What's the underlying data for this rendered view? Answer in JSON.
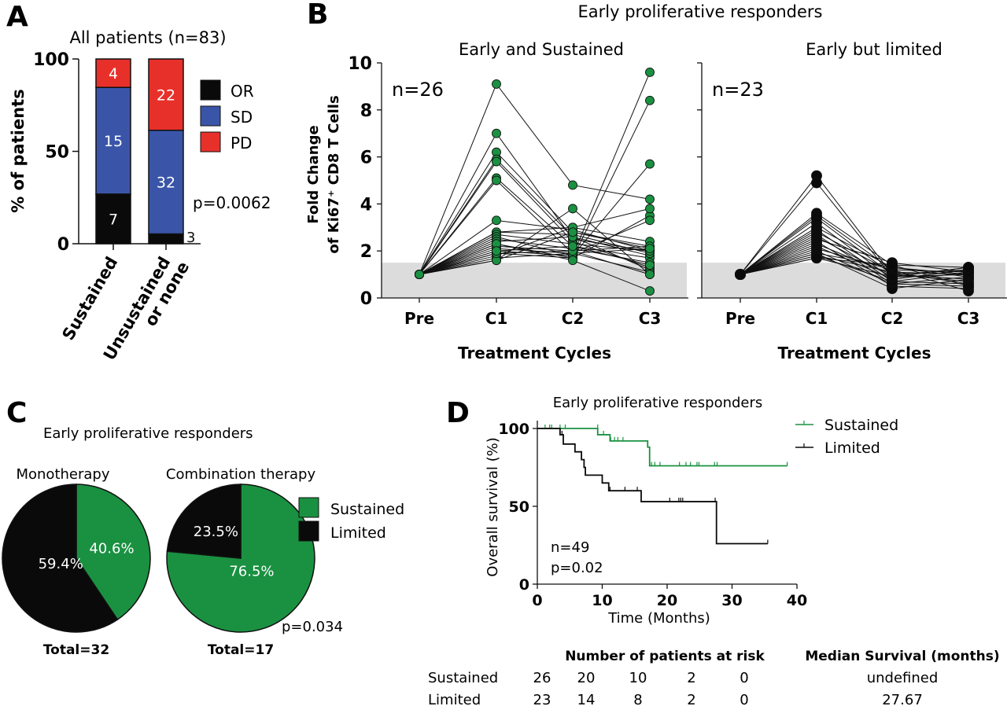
{
  "panels": {
    "A": "A",
    "B": "B",
    "C": "C",
    "D": "D"
  },
  "chart_data": [
    {
      "id": "A",
      "type": "bar",
      "stacked": true,
      "title": "All patients (n=83)",
      "ylabel": "% of patients",
      "ylim": [
        0,
        100
      ],
      "yticks": [
        "0",
        "50",
        "100"
      ],
      "categories": [
        "Sustained",
        "Unsustained or none"
      ],
      "category_lines": [
        [
          "Sustained"
        ],
        [
          "Unsustained",
          "or none"
        ]
      ],
      "series": [
        {
          "name": "OR",
          "color": "#0a0a0a",
          "counts": [
            7,
            3
          ],
          "values": [
            26.9,
            5.3
          ],
          "label_colors": [
            "#ffffff",
            "#111111"
          ]
        },
        {
          "name": "SD",
          "color": "#3a55a8",
          "counts": [
            15,
            32
          ],
          "values": [
            57.7,
            56.1
          ],
          "label_colors": [
            "#ffffff",
            "#ffffff"
          ]
        },
        {
          "name": "PD",
          "color": "#e8302a",
          "counts": [
            4,
            22
          ],
          "values": [
            15.4,
            38.6
          ],
          "label_colors": [
            "#ffffff",
            "#ffffff"
          ]
        }
      ],
      "annotation": "p=0.0062"
    },
    {
      "id": "B",
      "type": "line",
      "suptitle": "Early proliferative responders",
      "ylabel_lines": [
        "Fold Change",
        "of Ki67⁺ CD8 T Cells"
      ],
      "xlabel": "Treatment Cycles",
      "ylim": [
        0,
        10
      ],
      "yticks": [
        "0",
        "2",
        "4",
        "6",
        "8",
        "10"
      ],
      "threshold_band": [
        0,
        1.5
      ],
      "subplots": [
        {
          "title": "Early and Sustained",
          "n_label": "n=26",
          "marker_color": "#1a9141",
          "x": [
            "Pre",
            "C1",
            "C2",
            "C3"
          ],
          "series": [
            [
              1,
              9.1,
              4.8,
              4.2
            ],
            [
              1,
              7.0,
              2.5,
              2.0
            ],
            [
              1,
              6.2,
              2.8,
              2.2
            ],
            [
              1,
              5.9,
              2.6,
              1.8
            ],
            [
              1,
              5.8,
              2.4,
              1.3
            ],
            [
              1,
              5.1,
              2.2,
              1.7
            ],
            [
              1,
              5.0,
              1.9,
              2.1
            ],
            [
              1,
              3.3,
              2.9,
              2.0
            ],
            [
              1,
              2.8,
              3.0,
              2.4
            ],
            [
              1,
              2.8,
              2.7,
              1.9
            ],
            [
              1,
              2.7,
              2.3,
              2.0
            ],
            [
              1,
              2.6,
              1.8,
              9.6
            ],
            [
              1,
              2.5,
              2.1,
              1.5
            ],
            [
              1,
              2.4,
              2.6,
              1.2
            ],
            [
              1,
              2.3,
              1.7,
              8.4
            ],
            [
              1,
              2.2,
              2.0,
              2.2
            ],
            [
              1,
              2.1,
              1.9,
              1.1
            ],
            [
              1,
              2.0,
              1.8,
              5.7
            ],
            [
              1,
              1.9,
              1.7,
              3.5
            ],
            [
              1,
              1.8,
              3.0,
              3.8
            ],
            [
              1,
              1.7,
              1.9,
              3.3
            ],
            [
              1,
              1.6,
              3.8,
              1.0
            ],
            [
              1,
              1.6,
              2.8,
              2.1
            ],
            [
              1,
              1.9,
              2.0,
              1.0
            ],
            [
              1,
              2.3,
              1.6,
              0.3
            ],
            [
              1,
              2.0,
              2.2,
              1.4
            ]
          ]
        },
        {
          "title": "Early but limited",
          "n_label": "n=23",
          "marker_color": "#0a0a0a",
          "x": [
            "Pre",
            "C1",
            "C2",
            "C3"
          ],
          "series": [
            [
              1,
              5.2,
              1.0,
              1.2
            ],
            [
              1,
              4.9,
              0.9,
              1.0
            ],
            [
              1,
              3.6,
              1.4,
              1.3
            ],
            [
              1,
              3.5,
              1.2,
              1.1
            ],
            [
              1,
              3.4,
              1.0,
              0.8
            ],
            [
              1,
              3.2,
              0.8,
              1.2
            ],
            [
              1,
              3.0,
              1.3,
              0.9
            ],
            [
              1,
              2.9,
              0.7,
              0.6
            ],
            [
              1,
              2.8,
              1.1,
              1.0
            ],
            [
              1,
              2.7,
              0.6,
              0.5
            ],
            [
              1,
              2.6,
              0.9,
              1.3
            ],
            [
              1,
              2.5,
              1.5,
              1.1
            ],
            [
              1,
              2.4,
              0.5,
              0.4
            ],
            [
              1,
              2.3,
              1.0,
              0.7
            ],
            [
              1,
              2.2,
              0.8,
              1.2
            ],
            [
              1,
              2.1,
              1.2,
              0.3
            ],
            [
              1,
              2.0,
              0.6,
              0.9
            ],
            [
              1,
              1.9,
              1.3,
              1.0
            ],
            [
              1,
              1.9,
              0.4,
              0.8
            ],
            [
              1,
              1.8,
              1.1,
              0.6
            ],
            [
              1,
              1.8,
              0.7,
              1.1
            ],
            [
              1,
              1.7,
              1.4,
              0.5
            ],
            [
              1,
              1.7,
              0.9,
              1.3
            ]
          ]
        }
      ]
    },
    {
      "id": "C",
      "type": "pie",
      "title": "Early proliferative responders",
      "legend": [
        {
          "name": "Sustained",
          "color": "#1a9141"
        },
        {
          "name": "Limited",
          "color": "#0a0a0a"
        }
      ],
      "pies": [
        {
          "title": "Monotherapy",
          "total_label": "Total=32",
          "slices": [
            {
              "name": "Sustained",
              "value": 40.6,
              "label": "40.6%"
            },
            {
              "name": "Limited",
              "value": 59.4,
              "label": "59.4%"
            }
          ]
        },
        {
          "title": "Combination therapy",
          "total_label": "Total=17",
          "slices": [
            {
              "name": "Sustained",
              "value": 76.5,
              "label": "76.5%"
            },
            {
              "name": "Limited",
              "value": 23.5,
              "label": "23.5%"
            }
          ]
        }
      ],
      "annotation": "p=0.034"
    },
    {
      "id": "D",
      "type": "line",
      "subtype": "kaplan-meier",
      "title": "Early proliferative responders",
      "xlabel": "Time (Months)",
      "ylabel": "Overall survival (%)",
      "xlim": [
        0,
        40
      ],
      "ylim": [
        0,
        100
      ],
      "xticks": [
        "0",
        "10",
        "20",
        "30",
        "40"
      ],
      "yticks": [
        "0",
        "50",
        "100"
      ],
      "annotations": [
        "n=49",
        "p=0.02"
      ],
      "series": [
        {
          "name": "Sustained",
          "color": "#1a9141",
          "steps": [
            [
              0,
              100
            ],
            [
              9.3,
              96
            ],
            [
              11.2,
              92
            ],
            [
              17.0,
              88
            ],
            [
              17.3,
              76
            ],
            [
              38.5,
              76
            ]
          ],
          "censored": [
            [
              1.2,
              100
            ],
            [
              1.9,
              100
            ],
            [
              2.2,
              100
            ],
            [
              3.5,
              100
            ],
            [
              4.3,
              100
            ],
            [
              9.3,
              100
            ],
            [
              10.2,
              96
            ],
            [
              11.3,
              92
            ],
            [
              11.9,
              92
            ],
            [
              12.4,
              92
            ],
            [
              13.2,
              92
            ],
            [
              17.6,
              76
            ],
            [
              18.1,
              76
            ],
            [
              18.9,
              76
            ],
            [
              21.9,
              76
            ],
            [
              22.9,
              76
            ],
            [
              23.6,
              76
            ],
            [
              24.6,
              76
            ],
            [
              24.9,
              76
            ],
            [
              27.3,
              76
            ],
            [
              27.7,
              76
            ],
            [
              38.5,
              76
            ]
          ]
        },
        {
          "name": "Limited",
          "color": "#0a0a0a",
          "steps": [
            [
              0,
              100
            ],
            [
              3.5,
              96
            ],
            [
              4.0,
              90
            ],
            [
              5.8,
              85
            ],
            [
              6.8,
              80
            ],
            [
              7.2,
              75
            ],
            [
              7.4,
              70
            ],
            [
              10.0,
              65
            ],
            [
              11.0,
              60
            ],
            [
              16.0,
              53
            ],
            [
              27.6,
              26
            ],
            [
              35.5,
              26
            ]
          ],
          "censored": [
            [
              3.8,
              96
            ],
            [
              11.2,
              60
            ],
            [
              13.5,
              60
            ],
            [
              15.4,
              60
            ],
            [
              20.4,
              53
            ],
            [
              21.8,
              53
            ],
            [
              22.1,
              53
            ],
            [
              22.4,
              53
            ],
            [
              27.4,
              53
            ],
            [
              35.5,
              26
            ]
          ]
        }
      ],
      "risk_table": {
        "header_risk": "Number of patients at risk",
        "header_median": "Median Survival (months)",
        "rows": [
          {
            "name": "Sustained",
            "counts": [
              "26",
              "20",
              "10",
              "2",
              "0"
            ],
            "median": "undefined"
          },
          {
            "name": "Limited",
            "counts": [
              "23",
              "14",
              "8",
              "2",
              "0"
            ],
            "median": "27.67"
          }
        ]
      }
    }
  ]
}
